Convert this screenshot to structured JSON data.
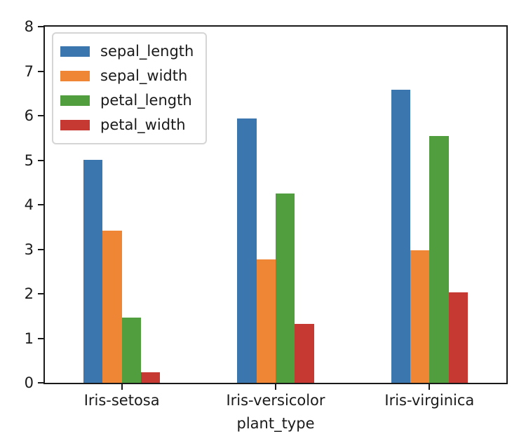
{
  "figure": {
    "background": "#ffffff",
    "text_color": "#1a1a1a",
    "spine_color": "#1a1a1a",
    "legend_border_color": "#d5d5d5"
  },
  "chart_data": {
    "type": "bar",
    "title": "",
    "xlabel": "plant_type",
    "ylabel": "",
    "categories": [
      "Iris-setosa",
      "Iris-versicolor",
      "Iris-virginica"
    ],
    "series": [
      {
        "name": "sepal_length",
        "color": "#3b76af",
        "values": [
          5.01,
          5.94,
          6.59
        ]
      },
      {
        "name": "sepal_width",
        "color": "#ef8636",
        "values": [
          3.42,
          2.77,
          2.97
        ]
      },
      {
        "name": "petal_length",
        "color": "#519e3e",
        "values": [
          1.46,
          4.26,
          5.55
        ]
      },
      {
        "name": "petal_width",
        "color": "#c53932",
        "values": [
          0.24,
          1.33,
          2.03
        ]
      }
    ],
    "ylim": [
      0,
      8
    ],
    "yticks": [
      0,
      1,
      2,
      3,
      4,
      5,
      6,
      7,
      8
    ],
    "grid": false,
    "legend_position": "upper-left",
    "bar_group_fraction": 0.5
  }
}
